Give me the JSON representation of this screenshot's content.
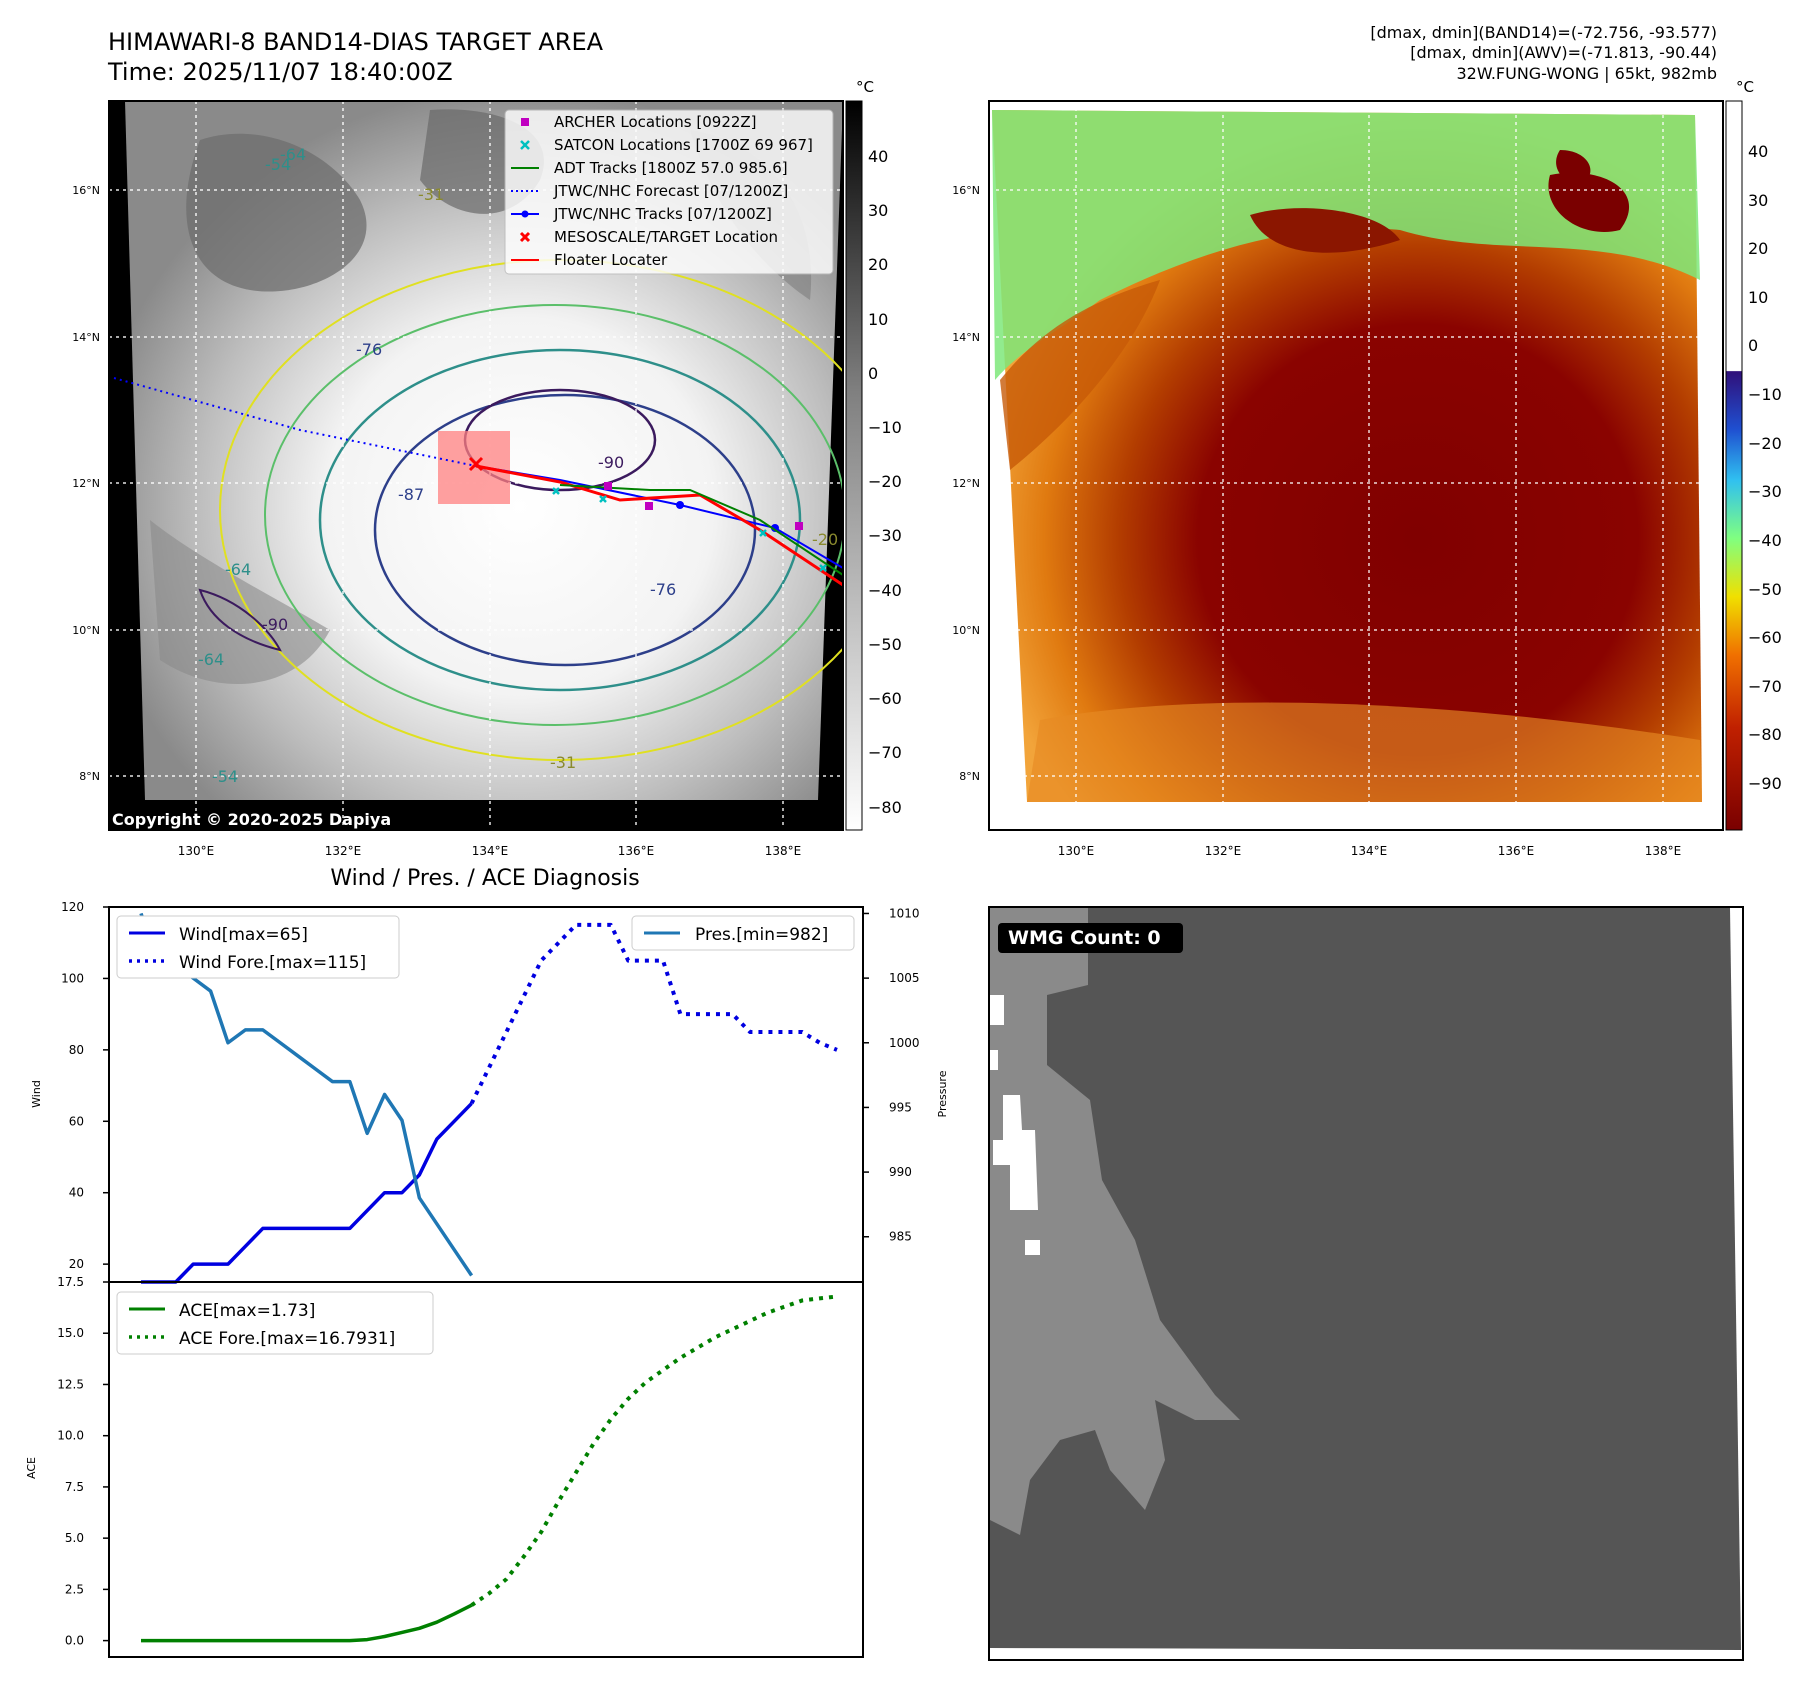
{
  "header": {
    "title_line1": "HIMAWARI-8 BAND14-DIAS TARGET AREA",
    "title_line2": "Time: 2025/11/07 18:40:00Z",
    "info_line1": "[dmax, dmin](BAND14)=(-72.756, -93.577)",
    "info_line2": "[dmax, dmin](AWV)=(-71.813, -90.44)",
    "info_line3": "32W.FUNG-WONG | 65kt, 982mb"
  },
  "map_left": {
    "lat_ticks": [
      "16°N",
      "14°N",
      "12°N",
      "10°N",
      "8°N"
    ],
    "lon_ticks": [
      "130°E",
      "132°E",
      "134°E",
      "136°E",
      "138°E"
    ],
    "copyright": "Copyright © 2020-2025 Dapiya",
    "contour_labels": [
      "-54",
      "-64",
      "-31",
      "-76",
      "-87",
      "-90",
      "-76",
      "-64",
      "-54",
      "-31",
      "-64",
      "-90",
      "-20"
    ],
    "legend": [
      {
        "label": "ARCHER Locations [0922Z]",
        "color": "#c000c0",
        "marker": "square"
      },
      {
        "label": "SATCON Locations [1700Z 69 967]",
        "color": "#00c0c0",
        "marker": "x"
      },
      {
        "label": "ADT Tracks [1800Z 57.0 985.6]",
        "color": "#008000",
        "marker": "line"
      },
      {
        "label": "JTWC/NHC Forecast [07/1200Z]",
        "color": "#0000ff",
        "marker": "dotted"
      },
      {
        "label": "JTWC/NHC Tracks [07/1200Z]",
        "color": "#0000ff",
        "marker": "line-dot"
      },
      {
        "label": "MESOSCALE/TARGET Location",
        "color": "#ff0000",
        "marker": "x"
      },
      {
        "label": "Floater Locater",
        "color": "#ff0000",
        "marker": "line"
      }
    ],
    "colorbar_unit": "°C",
    "colorbar_ticks": [
      "40",
      "30",
      "20",
      "10",
      "0",
      "−10",
      "−20",
      "−30",
      "−40",
      "−50",
      "−60",
      "−70",
      "−80"
    ]
  },
  "map_right": {
    "lat_ticks": [
      "16°N",
      "14°N",
      "12°N",
      "10°N",
      "8°N"
    ],
    "lon_ticks": [
      "130°E",
      "132°E",
      "134°E",
      "136°E",
      "138°E"
    ],
    "colorbar_unit": "°C",
    "colorbar_ticks": [
      "40",
      "30",
      "20",
      "10",
      "0",
      "−10",
      "−20",
      "−30",
      "−40",
      "−50",
      "−60",
      "−70",
      "−80",
      "−90"
    ]
  },
  "chart_data": [
    {
      "type": "line",
      "title": "Wind / Pres. / ACE Diagnosis",
      "ylabel": "Wind",
      "ylim": [
        15,
        120
      ],
      "yticks": [
        "20",
        "40",
        "60",
        "80",
        "100",
        "120"
      ],
      "y2label": "Pressure",
      "y2lim": [
        981.5,
        1010.5
      ],
      "y2ticks": [
        "985",
        "990",
        "995",
        "1000",
        "1005",
        "1010"
      ],
      "x": [
        0,
        1,
        2,
        3,
        4,
        5,
        6,
        7,
        8,
        9,
        10,
        11,
        12,
        13,
        14,
        15,
        16,
        17,
        18,
        19,
        20,
        21,
        22,
        23,
        24,
        25,
        26,
        27,
        28,
        29,
        30,
        31,
        32,
        33,
        34,
        35,
        36,
        37,
        38,
        39,
        40
      ],
      "series": [
        {
          "name": "Wind[max=65]",
          "axis": "left",
          "style": "solid",
          "color": "#0000e0",
          "x": [
            0,
            1,
            2,
            3,
            4,
            5,
            6,
            7,
            8,
            9,
            10,
            11,
            12,
            13,
            14,
            15,
            16,
            17,
            18,
            19
          ],
          "values": [
            15,
            15,
            15,
            20,
            20,
            20,
            25,
            30,
            30,
            30,
            30,
            30,
            30,
            35,
            40,
            40,
            45,
            55,
            60,
            65
          ]
        },
        {
          "name": "Wind Fore.[max=115]",
          "axis": "left",
          "style": "dotted",
          "color": "#0000e0",
          "x": [
            19,
            20,
            21,
            22,
            23,
            24,
            25,
            26,
            27,
            28,
            29,
            30,
            31,
            32,
            33,
            34,
            35,
            36,
            37,
            38,
            39,
            40
          ],
          "values": [
            65,
            75,
            85,
            95,
            105,
            110,
            115,
            115,
            115,
            105,
            105,
            105,
            90,
            90,
            90,
            90,
            85,
            85,
            85,
            85,
            82,
            80
          ]
        },
        {
          "name": "Pres.[min=982]",
          "axis": "right",
          "style": "solid",
          "color": "#1f77b4",
          "x": [
            0,
            1,
            2,
            3,
            4,
            5,
            6,
            7,
            8,
            9,
            10,
            11,
            12,
            13,
            14,
            15,
            16,
            17,
            18,
            19
          ],
          "values": [
            1010,
            1006,
            1006,
            1005,
            1004,
            1000,
            1001,
            1001,
            1000,
            999,
            998,
            997,
            997,
            993,
            996,
            994,
            988,
            986,
            984,
            982
          ]
        }
      ]
    },
    {
      "type": "line",
      "ylabel": "ACE",
      "ylim": [
        -0.8,
        17.5
      ],
      "yticks": [
        "0.0",
        "2.5",
        "5.0",
        "7.5",
        "10.0",
        "12.5",
        "15.0",
        "17.5"
      ],
      "series": [
        {
          "name": "ACE[max=1.73]",
          "style": "solid",
          "color": "#008000",
          "x": [
            0,
            1,
            2,
            3,
            4,
            5,
            6,
            7,
            8,
            9,
            10,
            11,
            12,
            13,
            14,
            15,
            16,
            17,
            18,
            19
          ],
          "values": [
            0,
            0,
            0,
            0,
            0,
            0,
            0,
            0,
            0,
            0,
            0,
            0,
            0,
            0.05,
            0.2,
            0.4,
            0.6,
            0.9,
            1.3,
            1.73
          ]
        },
        {
          "name": "ACE Fore.[max=16.7931]",
          "style": "dotted",
          "color": "#008000",
          "x": [
            19,
            20,
            21,
            22,
            23,
            24,
            25,
            26,
            27,
            28,
            29,
            30,
            31,
            32,
            33,
            34,
            35,
            36,
            37,
            38,
            39,
            40
          ],
          "values": [
            1.73,
            2.3,
            3.0,
            4.1,
            5.3,
            6.8,
            8.2,
            9.6,
            10.8,
            11.8,
            12.6,
            13.2,
            13.8,
            14.3,
            14.8,
            15.2,
            15.6,
            16.0,
            16.3,
            16.6,
            16.7,
            16.7931
          ]
        }
      ]
    }
  ],
  "wmg_panel": {
    "label": "WMG Count: 0"
  }
}
